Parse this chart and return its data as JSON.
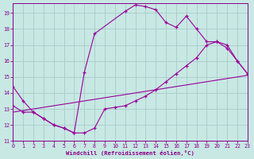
{
  "xlabel": "Windchill (Refroidissement éolien,°C)",
  "bg_color": "#c8e8e4",
  "grid_color": "#a8ccc8",
  "line_color": "#990099",
  "tick_color": "#880088",
  "xlim": [
    0,
    23
  ],
  "ylim": [
    11,
    19.6
  ],
  "yticks": [
    11,
    12,
    13,
    14,
    15,
    16,
    17,
    18,
    19
  ],
  "xticks": [
    0,
    1,
    2,
    3,
    4,
    5,
    6,
    7,
    8,
    9,
    10,
    11,
    12,
    13,
    14,
    15,
    16,
    17,
    18,
    19,
    20,
    21,
    22,
    23
  ],
  "curve1_x": [
    0,
    1,
    2,
    3,
    4,
    5,
    6,
    7,
    8,
    11,
    12,
    13,
    14,
    15,
    16,
    17,
    18,
    19,
    20,
    21,
    22,
    23
  ],
  "curve1_y": [
    14.4,
    13.5,
    12.8,
    12.4,
    12.0,
    11.8,
    11.5,
    15.3,
    17.7,
    19.1,
    19.5,
    19.4,
    19.2,
    18.4,
    18.1,
    18.8,
    18.0,
    17.2,
    17.2,
    17.0,
    16.0,
    15.2
  ],
  "curve2_x": [
    0,
    1,
    2,
    3,
    4,
    5,
    6,
    7,
    8,
    9,
    10,
    11,
    12,
    13,
    14,
    15,
    16,
    17,
    18,
    19,
    20,
    21,
    22,
    23
  ],
  "curve2_y": [
    13.2,
    12.8,
    12.8,
    12.4,
    12.0,
    11.8,
    11.5,
    11.5,
    11.8,
    13.0,
    13.1,
    13.2,
    13.5,
    13.8,
    14.2,
    14.7,
    15.2,
    15.7,
    16.2,
    17.0,
    17.2,
    16.8,
    16.0,
    15.2
  ],
  "curve3_x": [
    0,
    23
  ],
  "curve3_y": [
    12.8,
    15.1
  ]
}
